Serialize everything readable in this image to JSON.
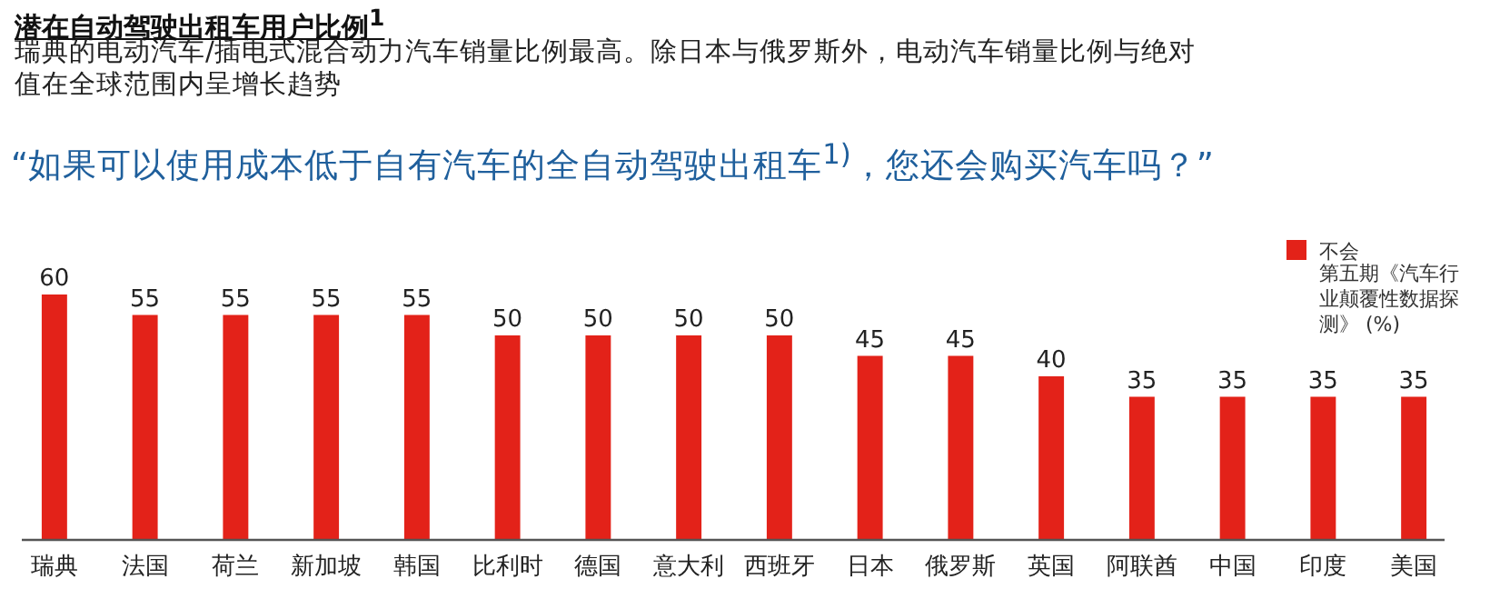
{
  "chart_data": {
    "type": "bar",
    "title": "潜在自动驾驶出租车用户比例$^{1}$",
    "subtitle": "瑞典的电动汽车/插电式混合动力汽车销量比例最高。除日本与俄罗斯外，电动汽车销量比例与绝对值在全球范围内呈增长趋势",
    "annotations": [
      "“如果可以使用成本低于自有汽车的全自动驾驶出租车$^{1)}$，您还会购买汽车吗？”",
      "第五期《汽车行业颠覆性数据探测》 (%)"
    ],
    "categories": [
      "瑞典",
      "法国",
      "荷兰",
      "新加坡",
      "韩国",
      "比利时",
      "德国",
      "意大利",
      "西班牙",
      "日本",
      "俄罗斯",
      "英国",
      "阿联酋",
      "中国",
      "印度",
      "美国"
    ],
    "series": [
      {
        "name": "不会",
        "color": "#e32219",
        "values": [
          60,
          55,
          55,
          55,
          55,
          50,
          50,
          50,
          50,
          45,
          45,
          40,
          35,
          35,
          35,
          35
        ]
      }
    ],
    "ylim": [
      0,
      60
    ],
    "data_labels": true,
    "legend": "top right"
  }
}
